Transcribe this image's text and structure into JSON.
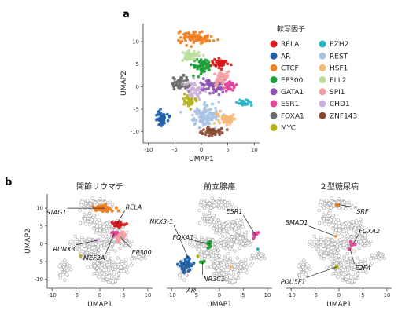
{
  "panel_a": {
    "letter": "a",
    "legend_title": "転写因子"
  },
  "panel_b": {
    "letter": "b"
  },
  "chart_data": [
    {
      "type": "scatter",
      "id": "umap-all",
      "xlabel": "UMAP1",
      "ylabel": "UMAP2",
      "xlim": [
        -11,
        11
      ],
      "ylim": [
        -12.5,
        14
      ],
      "xticks": [
        -10,
        -5,
        0,
        5,
        10
      ],
      "yticks": [
        -10,
        -5,
        0,
        5,
        10
      ],
      "legend_title": "転写因子",
      "legend_position": "right",
      "clusters": [
        {
          "name": "RELA",
          "color": "#d7191c",
          "cx": 3.5,
          "cy": 5.2,
          "sx": 1.0,
          "sy": 0.7,
          "n": 40
        },
        {
          "name": "AR",
          "color": "#1f5fa8",
          "cx": -7.5,
          "cy": -7.0,
          "sx": 0.8,
          "sy": 1.2,
          "n": 45
        },
        {
          "name": "CTCF",
          "color": "#f07f21",
          "cx": -1.0,
          "cy": 11.0,
          "sx": 2.0,
          "sy": 0.9,
          "n": 90
        },
        {
          "name": "EP300",
          "color": "#1b9e35",
          "cx": 0.2,
          "cy": 4.5,
          "sx": 1.2,
          "sy": 1.0,
          "n": 60
        },
        {
          "name": "GATA1",
          "color": "#8e52b3",
          "cx": 1.8,
          "cy": 0.0,
          "sx": 1.6,
          "sy": 1.1,
          "n": 55
        },
        {
          "name": "ESR1",
          "color": "#e0479a",
          "cx": 5.2,
          "cy": 0.2,
          "sx": 0.9,
          "sy": 0.8,
          "n": 35
        },
        {
          "name": "FOXA1",
          "color": "#6b6b6b",
          "cx": -3.8,
          "cy": 0.5,
          "sx": 1.2,
          "sy": 1.1,
          "n": 45
        },
        {
          "name": "MYC",
          "color": "#b5b31b",
          "cx": -2.5,
          "cy": -3.0,
          "sx": 0.9,
          "sy": 0.8,
          "n": 30
        },
        {
          "name": "EZH2",
          "color": "#2bb4c6",
          "cx": 8.0,
          "cy": -3.5,
          "sx": 0.8,
          "sy": 0.5,
          "n": 25
        },
        {
          "name": "REST",
          "color": "#a9c3e3",
          "cx": 0.8,
          "cy": -6.5,
          "sx": 1.8,
          "sy": 1.6,
          "n": 110
        },
        {
          "name": "HSF1",
          "color": "#f5b877",
          "cx": 4.5,
          "cy": -7.0,
          "sx": 1.1,
          "sy": 1.0,
          "n": 45
        },
        {
          "name": "ELL2",
          "color": "#b9df9a",
          "cx": -2.0,
          "cy": 7.0,
          "sx": 1.0,
          "sy": 0.8,
          "n": 40
        },
        {
          "name": "SPI1",
          "color": "#f49ea0",
          "cx": 3.8,
          "cy": 2.0,
          "sx": 1.0,
          "sy": 1.0,
          "n": 40
        },
        {
          "name": "CHD1",
          "color": "#cdb1dc",
          "cx": -1.5,
          "cy": -1.0,
          "sx": 1.3,
          "sy": 1.3,
          "n": 45
        },
        {
          "name": "ZNF143",
          "color": "#8b4a32",
          "cx": 2.0,
          "cy": -10.0,
          "sx": 1.3,
          "sy": 0.7,
          "n": 40
        }
      ]
    },
    {
      "type": "scatter",
      "id": "ra",
      "title": "関節リウマチ",
      "xlabel": "UMAP1",
      "ylabel": "UMAP2",
      "xlim": [
        -11,
        11
      ],
      "ylim": [
        -12.5,
        14
      ],
      "xticks": [
        -10,
        -5,
        0,
        5,
        10
      ],
      "yticks": [
        -10,
        -5,
        0,
        5,
        10
      ],
      "highlights": [
        {
          "name": "STAG1",
          "color": "#f07f21",
          "cx": 1.0,
          "cy": 10.0,
          "sx": 1.6,
          "sy": 0.8,
          "n": 30,
          "lx": -6.8,
          "ly": 10.0
        },
        {
          "name": "RELA",
          "color": "#d7191c",
          "cx": 3.5,
          "cy": 5.5,
          "sx": 0.8,
          "sy": 0.6,
          "n": 25,
          "lx": 5.2,
          "ly": 9.3
        },
        {
          "name": "EP300",
          "color": "#f49ea0",
          "cx": 4.2,
          "cy": 2.0,
          "sx": 0.8,
          "sy": 0.9,
          "n": 25,
          "lx": 6.5,
          "ly": -1.2
        },
        {
          "name": "MEF2A",
          "color": "#e0479a",
          "cx": 3.0,
          "cy": 3.0,
          "sx": 0.5,
          "sy": 0.4,
          "n": 8,
          "lx": 1.2,
          "ly": -2.8
        },
        {
          "name": "RUNX3",
          "color": "#cdb1dc",
          "cx": -0.5,
          "cy": 1.0,
          "sx": 0.4,
          "sy": 0.3,
          "n": 4,
          "lx": -5.0,
          "ly": -0.3
        }
      ],
      "extra_points": [
        {
          "color": "#b5b31b",
          "x": -4.0,
          "y": -3.5
        }
      ]
    },
    {
      "type": "scatter",
      "id": "pca",
      "title": "前立腺癌",
      "xlabel": "UMAP1",
      "xlim": [
        -11,
        11
      ],
      "ylim": [
        -12.5,
        14
      ],
      "xticks": [
        -10,
        -5,
        0,
        5,
        10
      ],
      "highlights": [
        {
          "name": "AR",
          "color": "#1f5fa8",
          "cx": -7.0,
          "cy": -6.0,
          "sx": 0.9,
          "sy": 1.4,
          "n": 35,
          "lx": -7.0,
          "ly": -12.0
        },
        {
          "name": "NKX3-1",
          "color": "#1f5fa8",
          "cx": -6.5,
          "cy": -4.0,
          "sx": 0.3,
          "sy": 0.3,
          "n": 3,
          "lx": -9.5,
          "ly": 5.2
        },
        {
          "name": "FOXA1",
          "color": "#1b9e35",
          "cx": -2.0,
          "cy": 0.0,
          "sx": 0.5,
          "sy": 0.6,
          "n": 8,
          "lx": -5.2,
          "ly": 0.8
        },
        {
          "name": "NR3C1",
          "color": "#1b9e35",
          "cx": -3.5,
          "cy": -5.0,
          "sx": 0.4,
          "sy": 0.4,
          "n": 4,
          "lx": -3.5,
          "ly": -8.8
        },
        {
          "name": "ESR1",
          "color": "#e0479a",
          "cx": 7.5,
          "cy": 2.5,
          "sx": 0.5,
          "sy": 0.7,
          "n": 10,
          "lx": 5.0,
          "ly": 8.0
        }
      ],
      "extra_points": [
        {
          "color": "#2bb4c6",
          "x": 8.0,
          "y": -1.5
        },
        {
          "color": "#f5b877",
          "x": 2.5,
          "y": -6.5
        },
        {
          "color": "#b5b31b",
          "x": -4.5,
          "y": -3.5
        }
      ]
    },
    {
      "type": "scatter",
      "id": "t2d",
      "title": "２型糖尿病",
      "xlabel": "UMAP1",
      "xlim": [
        -11,
        11
      ],
      "ylim": [
        -12.5,
        14
      ],
      "xticks": [
        -10,
        -5,
        0,
        5,
        10
      ],
      "highlights": [
        {
          "name": "SRF",
          "color": "#f07f21",
          "cx": 0.0,
          "cy": 11.0,
          "sx": 0.3,
          "sy": 0.2,
          "n": 2,
          "lx": 3.5,
          "ly": 10.2
        },
        {
          "name": "SMAD1",
          "color": "#f5b877",
          "cx": -0.5,
          "cy": 2.0,
          "sx": 0.3,
          "sy": 0.3,
          "n": 2,
          "lx": -6.3,
          "ly": 5.0
        },
        {
          "name": "FOXA2",
          "color": "#e0479a",
          "cx": 3.0,
          "cy": 0.0,
          "sx": 0.5,
          "sy": 0.5,
          "n": 6,
          "lx": 4.0,
          "ly": 2.5
        },
        {
          "name": "E2F4",
          "color": "#e0479a",
          "cx": 2.3,
          "cy": -1.5,
          "sx": 0.2,
          "sy": 0.2,
          "n": 2,
          "lx": 3.2,
          "ly": -5.6
        },
        {
          "name": "POU5F1",
          "color": "#b5b31b",
          "cx": -0.5,
          "cy": -6.5,
          "sx": 0.3,
          "sy": 0.3,
          "n": 2,
          "lx": -6.8,
          "ly": -9.5
        }
      ],
      "extra_points": []
    }
  ]
}
